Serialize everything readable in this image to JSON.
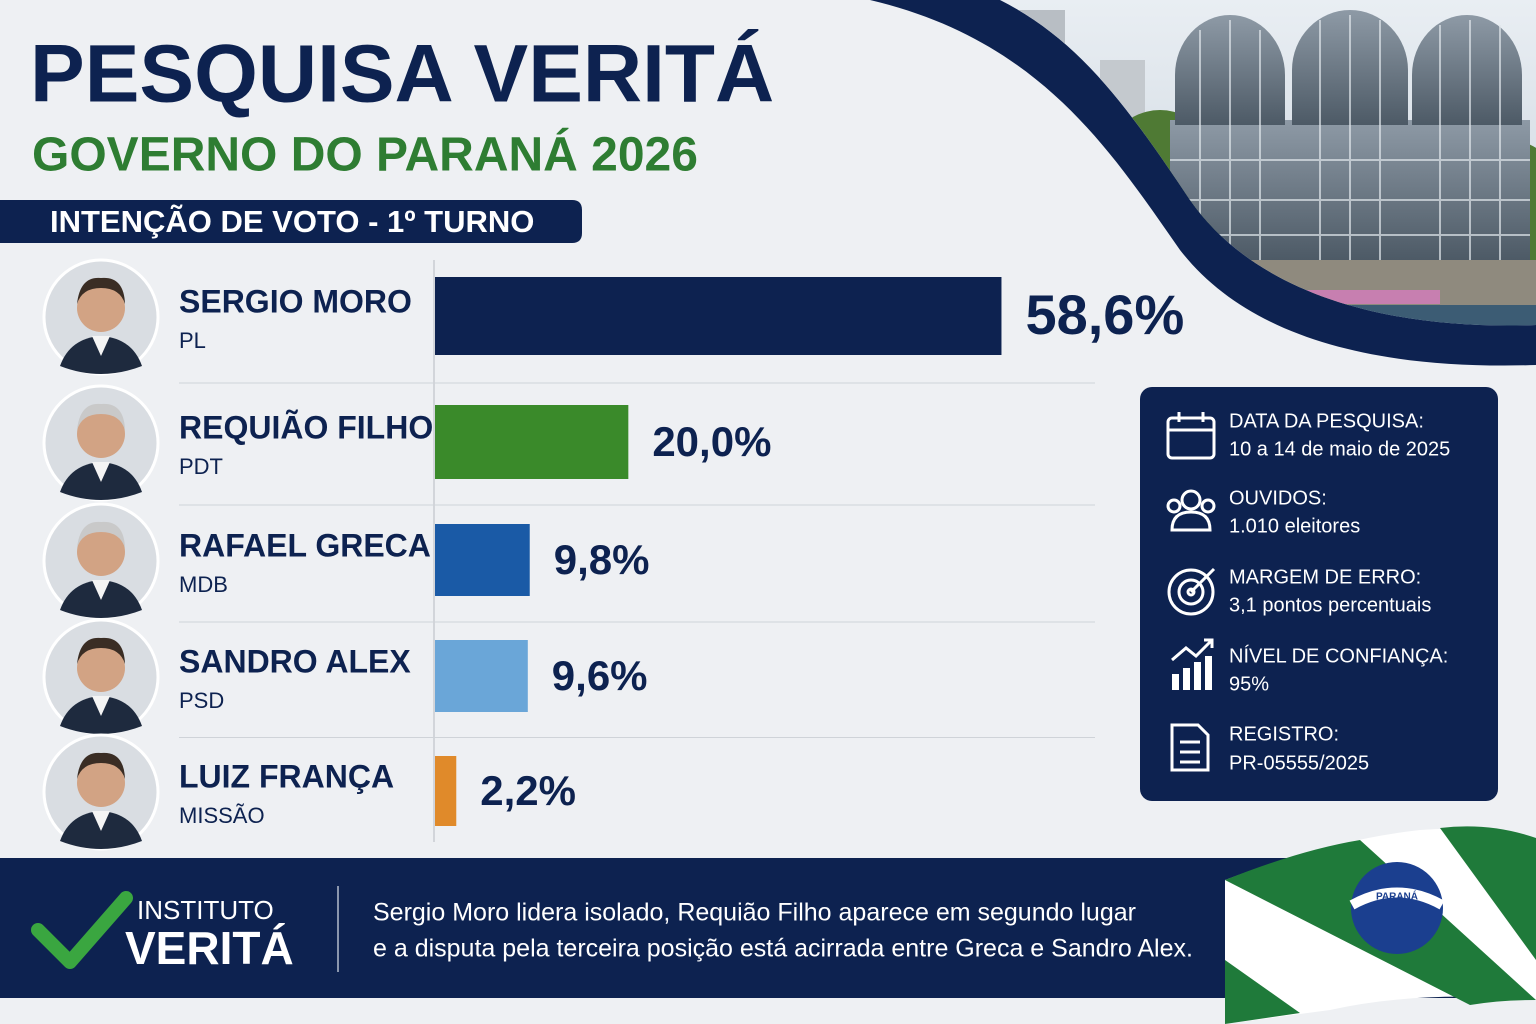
{
  "header": {
    "title": "PESQUISA VERITÁ",
    "subtitle": "GOVERNO DO PARANÁ 2026",
    "section": "INTENÇÃO DE VOTO - 1º TURNO"
  },
  "chart_data": {
    "type": "bar",
    "orientation": "horizontal",
    "categories": [
      "SERGIO MORO",
      "REQUIÃO FILHO",
      "RAFAEL GRECA",
      "SANDRO ALEX",
      "LUIZ FRANÇA"
    ],
    "parties": [
      "PL",
      "PDT",
      "MDB",
      "PSD",
      "MISSÃO"
    ],
    "values": [
      58.6,
      20.0,
      9.8,
      9.6,
      2.2
    ],
    "value_labels": [
      "58,6%",
      "20,0%",
      "9,8%",
      "9,6%",
      "2,2%"
    ],
    "colors": [
      "#0d2250",
      "#3a8a2a",
      "#1a5aa6",
      "#6aa6d8",
      "#e08a2a"
    ],
    "xlim": [
      0,
      60
    ]
  },
  "info": [
    {
      "label": "DATA DA PESQUISA:",
      "value": "10 a 14 de maio de 2025"
    },
    {
      "label": "OUVIDOS:",
      "value": "1.010 eleitores"
    },
    {
      "label": "MARGEM DE ERRO:",
      "value": "3,1 pontos percentuais"
    },
    {
      "label": "NÍVEL DE CONFIANÇA:",
      "value": "95%"
    },
    {
      "label": "REGISTRO:",
      "value": "PR-05555/2025"
    }
  ],
  "footer": {
    "brand_top": "INSTITUTO",
    "brand": "VERITÁ",
    "lines": [
      "Sergio Moro lidera isolado, Requião Filho aparece em segundo lugar",
      "e a disputa pela terceira posição está acirrada entre Greca e Sandro Alex."
    ]
  },
  "flag_text": "PARANÁ"
}
